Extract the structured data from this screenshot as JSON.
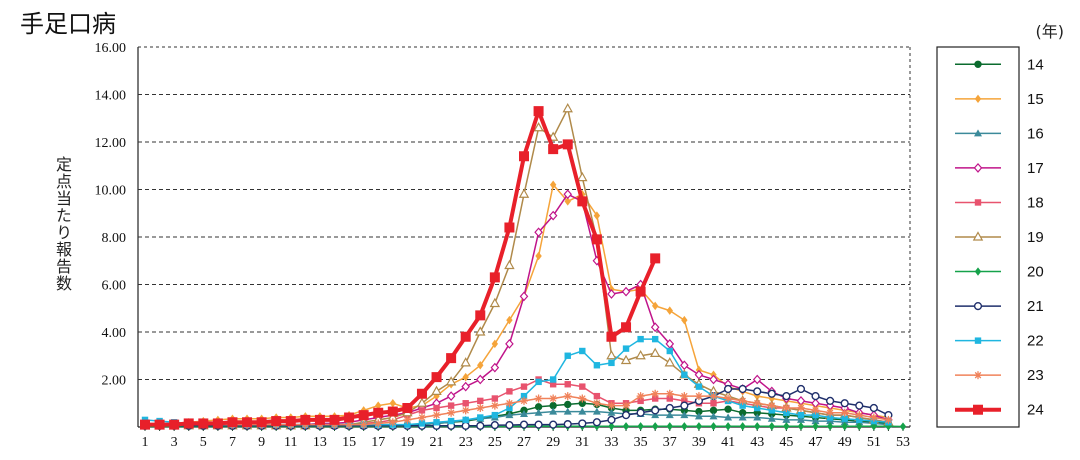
{
  "title": "手足口病",
  "unit": "(年)",
  "ylabel": "定点当たり報告数",
  "chart_data": {
    "type": "line",
    "title": "手足口病",
    "ylabel": "定点当たり報告数",
    "xlabel": "",
    "ylim": [
      0,
      16
    ],
    "yticks": [
      "2.00",
      "4.00",
      "6.00",
      "8.00",
      "10.00",
      "12.00",
      "14.00",
      "16.00"
    ],
    "x": [
      1,
      2,
      3,
      4,
      5,
      6,
      7,
      8,
      9,
      10,
      11,
      12,
      13,
      14,
      15,
      16,
      17,
      18,
      19,
      20,
      21,
      22,
      23,
      24,
      25,
      26,
      27,
      28,
      29,
      30,
      31,
      32,
      33,
      34,
      35,
      36,
      37,
      38,
      39,
      40,
      41,
      42,
      43,
      44,
      45,
      46,
      47,
      48,
      49,
      50,
      51,
      52,
      53
    ],
    "xticks": [
      "1",
      "3",
      "5",
      "7",
      "9",
      "11",
      "13",
      "15",
      "17",
      "19",
      "21",
      "23",
      "25",
      "27",
      "29",
      "31",
      "33",
      "35",
      "37",
      "39",
      "41",
      "43",
      "45",
      "47",
      "49",
      "51",
      "53"
    ],
    "grid": true,
    "legend_position": "right",
    "series": [
      {
        "name": "14",
        "color": "#0b6b2e",
        "marker": "circle-filled",
        "width": 1.5,
        "values": [
          0.05,
          0.05,
          0.05,
          0.05,
          0.05,
          0.05,
          0.05,
          0.05,
          0.05,
          0.05,
          0.05,
          0.05,
          0.05,
          0.05,
          0.05,
          0.05,
          0.05,
          0.06,
          0.08,
          0.1,
          0.15,
          0.2,
          0.25,
          0.35,
          0.45,
          0.55,
          0.7,
          0.85,
          0.9,
          0.95,
          1.0,
          0.95,
          0.8,
          0.7,
          0.7,
          0.75,
          0.75,
          0.7,
          0.65,
          0.7,
          0.75,
          0.6,
          0.6,
          0.55,
          0.5,
          0.45,
          0.4,
          0.35,
          0.3,
          0.25,
          0.2,
          0.15,
          null
        ]
      },
      {
        "name": "15",
        "color": "#f5a43a",
        "marker": "diamond-filled",
        "width": 1.5,
        "values": [
          0.1,
          0.1,
          0.15,
          0.2,
          0.25,
          0.3,
          0.35,
          0.35,
          0.35,
          0.4,
          0.4,
          0.45,
          0.45,
          0.45,
          0.5,
          0.7,
          0.9,
          1.0,
          0.8,
          0.9,
          1.3,
          1.8,
          2.1,
          2.6,
          3.5,
          4.5,
          5.5,
          7.2,
          10.2,
          9.5,
          9.8,
          8.9,
          5.8,
          5.7,
          5.8,
          5.1,
          4.9,
          4.5,
          2.4,
          2.2,
          1.7,
          1.5,
          1.3,
          1.2,
          1.1,
          1.0,
          0.9,
          0.8,
          0.7,
          0.6,
          0.5,
          0.4,
          null
        ]
      },
      {
        "name": "16",
        "color": "#3b8a9a",
        "marker": "triangle-filled",
        "width": 1.5,
        "values": [
          0.05,
          0.05,
          0.05,
          0.05,
          0.05,
          0.05,
          0.05,
          0.05,
          0.05,
          0.05,
          0.05,
          0.05,
          0.05,
          0.05,
          0.05,
          0.05,
          0.05,
          0.05,
          0.08,
          0.1,
          0.15,
          0.2,
          0.3,
          0.35,
          0.4,
          0.5,
          0.55,
          0.6,
          0.65,
          0.65,
          0.65,
          0.65,
          0.6,
          0.55,
          0.55,
          0.5,
          0.5,
          0.5,
          0.45,
          0.45,
          0.4,
          0.4,
          0.4,
          0.35,
          0.3,
          0.3,
          0.25,
          0.25,
          0.2,
          0.2,
          0.15,
          0.1,
          null
        ]
      },
      {
        "name": "17",
        "color": "#c0148a",
        "marker": "diamond-open",
        "width": 1.5,
        "values": [
          0.05,
          0.05,
          0.05,
          0.05,
          0.05,
          0.05,
          0.05,
          0.05,
          0.1,
          0.1,
          0.1,
          0.1,
          0.15,
          0.15,
          0.2,
          0.3,
          0.4,
          0.5,
          0.6,
          0.8,
          1.0,
          1.3,
          1.7,
          2.0,
          2.5,
          3.5,
          5.5,
          8.2,
          8.9,
          9.8,
          9.5,
          7.0,
          5.6,
          5.7,
          6.0,
          4.2,
          3.5,
          2.6,
          2.2,
          2.0,
          1.8,
          1.6,
          2.0,
          1.5,
          1.2,
          1.1,
          1.0,
          0.9,
          0.8,
          0.6,
          0.5,
          0.3,
          null
        ]
      },
      {
        "name": "18",
        "color": "#e8536e",
        "marker": "square-filled",
        "width": 1.5,
        "values": [
          0.05,
          0.05,
          0.05,
          0.05,
          0.05,
          0.05,
          0.05,
          0.05,
          0.05,
          0.05,
          0.05,
          0.05,
          0.05,
          0.05,
          0.1,
          0.15,
          0.2,
          0.3,
          0.5,
          0.7,
          0.8,
          0.9,
          1.0,
          1.1,
          1.2,
          1.5,
          1.7,
          2.0,
          1.8,
          1.8,
          1.7,
          1.3,
          1.0,
          1.0,
          1.1,
          1.2,
          1.2,
          1.1,
          1.0,
          1.0,
          1.1,
          1.0,
          0.9,
          0.8,
          0.8,
          0.7,
          0.6,
          0.5,
          0.5,
          0.4,
          0.3,
          0.2,
          null
        ]
      },
      {
        "name": "19",
        "color": "#b08a4a",
        "marker": "triangle-open",
        "width": 1.5,
        "values": [
          0.05,
          0.05,
          0.05,
          0.05,
          0.05,
          0.05,
          0.05,
          0.05,
          0.05,
          0.05,
          0.05,
          0.05,
          0.1,
          0.1,
          0.1,
          0.2,
          0.3,
          0.4,
          0.6,
          1.0,
          1.5,
          1.9,
          2.7,
          4.0,
          5.2,
          6.8,
          9.8,
          12.6,
          12.2,
          13.4,
          10.5,
          7.9,
          3.0,
          2.8,
          3.0,
          3.1,
          2.7,
          2.2,
          1.8,
          1.5,
          1.3,
          1.1,
          1.0,
          0.9,
          0.8,
          0.7,
          0.6,
          0.5,
          0.5,
          0.4,
          0.3,
          0.2,
          null
        ]
      },
      {
        "name": "20",
        "color": "#15a24a",
        "marker": "diamond-filled",
        "width": 1.5,
        "values": [
          0.02,
          0.02,
          0.02,
          0.02,
          0.02,
          0.02,
          0.02,
          0.02,
          0.02,
          0.02,
          0.02,
          0.02,
          0.02,
          0.02,
          0.02,
          0.02,
          0.02,
          0.02,
          0.02,
          0.02,
          0.02,
          0.02,
          0.02,
          0.02,
          0.02,
          0.02,
          0.03,
          0.03,
          0.03,
          0.03,
          0.03,
          0.03,
          0.03,
          0.03,
          0.03,
          0.03,
          0.03,
          0.03,
          0.03,
          0.03,
          0.03,
          0.03,
          0.03,
          0.03,
          0.03,
          0.03,
          0.03,
          0.03,
          0.03,
          0.03,
          0.03,
          0.03,
          0.02
        ]
      },
      {
        "name": "21",
        "color": "#1f2f6b",
        "marker": "circle-open",
        "width": 1.5,
        "values": [
          0.05,
          0.05,
          0.05,
          0.05,
          0.05,
          0.05,
          0.05,
          0.05,
          0.05,
          0.05,
          0.05,
          0.05,
          0.05,
          0.05,
          0.05,
          0.05,
          0.05,
          0.05,
          0.05,
          0.05,
          0.05,
          0.05,
          0.05,
          0.05,
          0.08,
          0.08,
          0.1,
          0.1,
          0.1,
          0.12,
          0.15,
          0.2,
          0.3,
          0.5,
          0.6,
          0.7,
          0.8,
          0.9,
          1.1,
          1.3,
          1.6,
          1.6,
          1.5,
          1.4,
          1.3,
          1.6,
          1.3,
          1.1,
          1.0,
          0.9,
          0.8,
          0.5,
          null
        ]
      },
      {
        "name": "22",
        "color": "#1fb6e0",
        "marker": "square-filled",
        "width": 1.5,
        "values": [
          0.3,
          0.25,
          0.2,
          0.15,
          0.15,
          0.1,
          0.1,
          0.1,
          0.1,
          0.1,
          0.1,
          0.1,
          0.1,
          0.1,
          0.1,
          0.1,
          0.1,
          0.1,
          0.1,
          0.15,
          0.2,
          0.25,
          0.3,
          0.4,
          0.5,
          0.8,
          1.3,
          1.9,
          2.0,
          3.0,
          3.2,
          2.6,
          2.7,
          3.3,
          3.7,
          3.7,
          3.2,
          2.2,
          1.7,
          1.3,
          1.1,
          0.9,
          0.8,
          0.7,
          0.6,
          0.5,
          0.5,
          0.4,
          0.35,
          0.3,
          0.25,
          0.2,
          null
        ]
      },
      {
        "name": "23",
        "color": "#f0825a",
        "marker": "star",
        "width": 1.5,
        "values": [
          0.1,
          0.1,
          0.1,
          0.1,
          0.1,
          0.1,
          0.1,
          0.1,
          0.1,
          0.1,
          0.1,
          0.1,
          0.1,
          0.1,
          0.1,
          0.1,
          0.15,
          0.2,
          0.3,
          0.4,
          0.5,
          0.6,
          0.7,
          0.8,
          0.9,
          1.0,
          1.1,
          1.2,
          1.2,
          1.3,
          1.2,
          1.0,
          0.9,
          0.9,
          1.3,
          1.4,
          1.4,
          1.3,
          1.3,
          1.3,
          1.2,
          1.1,
          1.0,
          0.9,
          0.8,
          0.8,
          0.7,
          0.6,
          0.6,
          0.5,
          0.4,
          0.3,
          null
        ]
      },
      {
        "name": "24",
        "color": "#e8202a",
        "marker": "square-filled-large",
        "width": 4,
        "values": [
          0.1,
          0.1,
          0.1,
          0.15,
          0.15,
          0.15,
          0.2,
          0.2,
          0.2,
          0.25,
          0.25,
          0.3,
          0.3,
          0.3,
          0.4,
          0.5,
          0.6,
          0.65,
          0.8,
          1.4,
          2.1,
          2.9,
          3.8,
          4.7,
          6.3,
          8.4,
          11.4,
          13.3,
          11.7,
          11.9,
          9.5,
          7.9,
          3.8,
          4.2,
          5.7,
          7.1,
          null,
          null,
          null,
          null,
          null,
          null,
          null,
          null,
          null,
          null,
          null,
          null,
          null,
          null,
          null,
          null,
          null
        ]
      }
    ]
  }
}
